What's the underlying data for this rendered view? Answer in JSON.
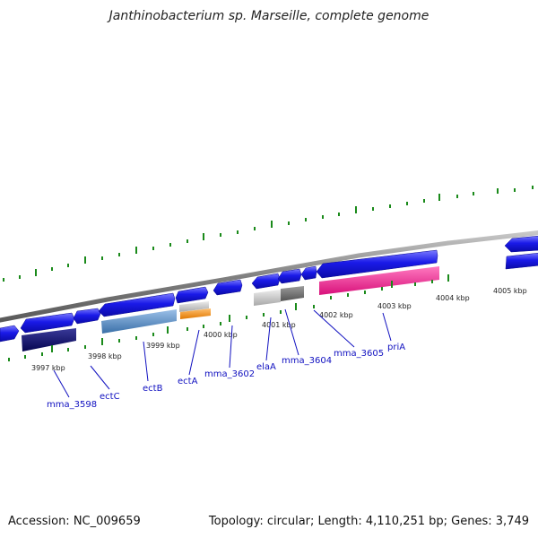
{
  "title": "Janthinobacterium sp. Marseille, complete genome",
  "accession": "Accession: NC_009659",
  "summary": "Topology: circular; Length: 4,110,251 bp; Genes: 3,749",
  "kbp_labels": [
    "3997 kbp",
    "3998 kbp",
    "3999 kbp",
    "4000 kbp",
    "4001 kbp",
    "4002 kbp",
    "4003 kbp",
    "4004 kbp",
    "4005 kbp"
  ],
  "gene_labels": [
    "mma_3598",
    "ectC",
    "ectB",
    "ectA",
    "mma_3602",
    "elaA",
    "mma_3604",
    "mma_3605",
    "priA"
  ],
  "colors": {
    "cds": "#1515e8",
    "backbone": "#8a8a8a",
    "ticks": "#1a8a1a",
    "label": "#1010c0",
    "navy": "#0b0b6e",
    "steelblue": "#4f86c0",
    "orange": "#f08c10",
    "lightgray": "#c8c8c8",
    "darkgray": "#6e6e6e",
    "pink": "#ee1a8a"
  }
}
